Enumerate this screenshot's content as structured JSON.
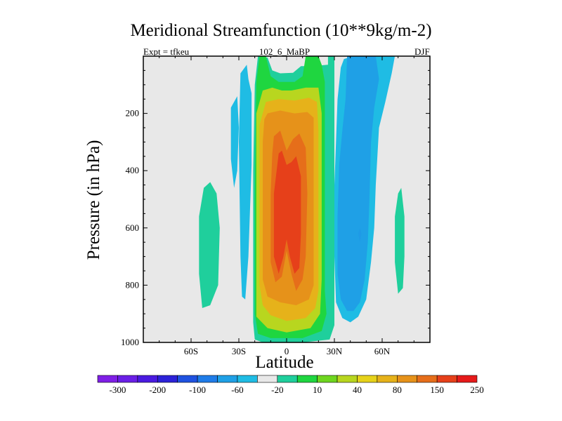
{
  "chart_data": {
    "type": "heatmap",
    "title": "Meridional Streamfunction (10**9kg/m-2)",
    "left_label": "Expt = tfkeu",
    "center_label": "102_6_MaBP",
    "right_label": "DJF",
    "xlabel": "Latitude",
    "ylabel": "Pressure (in hPa)",
    "xlim": [
      -90,
      90
    ],
    "ylim": [
      1000,
      0
    ],
    "y_inverted": true,
    "x_ticks": [
      {
        "value": -60,
        "label": "60S"
      },
      {
        "value": -30,
        "label": "30S"
      },
      {
        "value": 0,
        "label": "0"
      },
      {
        "value": 30,
        "label": "30N"
      },
      {
        "value": 60,
        "label": "60N"
      }
    ],
    "y_ticks": [
      {
        "value": 200,
        "label": "200"
      },
      {
        "value": 400,
        "label": "400"
      },
      {
        "value": 600,
        "label": "600"
      },
      {
        "value": 800,
        "label": "800"
      },
      {
        "value": 1000,
        "label": "1000"
      }
    ],
    "background_color": "#e8e8e8",
    "colorbar": {
      "colors": [
        "#7f1fe6",
        "#6a1fe6",
        "#4a1ae0",
        "#2c22d8",
        "#1f52e0",
        "#1f7ce8",
        "#1fa0e6",
        "#1fbce4",
        "#e8e8e8",
        "#1fcf9c",
        "#1fd640",
        "#6ed61f",
        "#b8d61f",
        "#e6d21a",
        "#e6b21a",
        "#e6921a",
        "#e66e1a",
        "#e6401a",
        "#e61a1a"
      ],
      "labels": [
        {
          "after_box": 1,
          "text": "-300"
        },
        {
          "after_box": 3,
          "text": "-200"
        },
        {
          "after_box": 5,
          "text": "-100"
        },
        {
          "after_box": 7,
          "text": "-60"
        },
        {
          "after_box": 9,
          "text": "-20"
        },
        {
          "after_box": 11,
          "text": "10"
        },
        {
          "after_box": 13,
          "text": "40"
        },
        {
          "after_box": 15,
          "text": "80"
        },
        {
          "after_box": 17,
          "text": "150"
        },
        {
          "after_box": 19,
          "text": "250"
        }
      ]
    },
    "contour_regions": [
      {
        "level": 10,
        "color": "#1fcf9c",
        "points": [
          [
            -48,
            440
          ],
          [
            -44,
            480
          ],
          [
            -42,
            600
          ],
          [
            -43,
            800
          ],
          [
            -48,
            870
          ],
          [
            -53,
            880
          ],
          [
            -55,
            760
          ],
          [
            -55,
            560
          ],
          [
            -52,
            460
          ]
        ]
      },
      {
        "level": 10,
        "color": "#1fcf9c",
        "points": [
          [
            72,
            460
          ],
          [
            74,
            560
          ],
          [
            74,
            700
          ],
          [
            73,
            810
          ],
          [
            70,
            830
          ],
          [
            68,
            720
          ],
          [
            68,
            560
          ],
          [
            70,
            480
          ]
        ]
      },
      {
        "level": 10,
        "color": "#1fcf9c",
        "points": [
          [
            -18,
            0
          ],
          [
            -12,
            5
          ],
          [
            -9,
            50
          ],
          [
            -4,
            60
          ],
          [
            4,
            58
          ],
          [
            9,
            35
          ],
          [
            16,
            35
          ],
          [
            26,
            30
          ],
          [
            26,
            0
          ],
          [
            30,
            0
          ],
          [
            30,
            940
          ],
          [
            27,
            990
          ],
          [
            10,
            1000
          ],
          [
            -15,
            1000
          ],
          [
            -20,
            990
          ],
          [
            -21,
            930
          ],
          [
            -21,
            400
          ],
          [
            -20,
            100
          ]
        ]
      },
      {
        "level": 40,
        "color": "#1fd640",
        "points": [
          [
            -17,
            0
          ],
          [
            -13,
            0
          ],
          [
            -10,
            70
          ],
          [
            -5,
            90
          ],
          [
            5,
            90
          ],
          [
            10,
            70
          ],
          [
            12,
            0
          ],
          [
            20,
            0
          ],
          [
            22,
            30
          ],
          [
            24,
            90
          ],
          [
            24,
            500
          ],
          [
            24,
            820
          ],
          [
            25,
            900
          ],
          [
            22,
            960
          ],
          [
            10,
            985
          ],
          [
            -10,
            985
          ],
          [
            -18,
            970
          ],
          [
            -20,
            900
          ],
          [
            -20,
            500
          ],
          [
            -19,
            90
          ]
        ]
      },
      {
        "level": 80,
        "color": "#b8d61f",
        "points": [
          [
            -15,
            120
          ],
          [
            -9,
            110
          ],
          [
            -3,
            120
          ],
          [
            3,
            120
          ],
          [
            12,
            110
          ],
          [
            20,
            110
          ],
          [
            22,
            200
          ],
          [
            22,
            780
          ],
          [
            21,
            900
          ],
          [
            15,
            950
          ],
          [
            0,
            965
          ],
          [
            -12,
            950
          ],
          [
            -19,
            910
          ],
          [
            -19,
            780
          ],
          [
            -19,
            200
          ]
        ]
      },
      {
        "level": 150,
        "color": "#e6b21a",
        "points": [
          [
            -13,
            160
          ],
          [
            -5,
            150
          ],
          [
            5,
            155
          ],
          [
            14,
            145
          ],
          [
            19,
            160
          ],
          [
            20,
            260
          ],
          [
            20,
            820
          ],
          [
            18,
            880
          ],
          [
            12,
            915
          ],
          [
            0,
            925
          ],
          [
            -10,
            905
          ],
          [
            -15,
            870
          ],
          [
            -17,
            800
          ],
          [
            -17,
            240
          ]
        ]
      },
      {
        "level": 200,
        "color": "#e6921a",
        "points": [
          [
            -12,
            200
          ],
          [
            -4,
            190
          ],
          [
            5,
            200
          ],
          [
            13,
            195
          ],
          [
            17,
            215
          ],
          [
            17,
            300
          ],
          [
            17,
            800
          ],
          [
            14,
            850
          ],
          [
            6,
            870
          ],
          [
            -4,
            860
          ],
          [
            -12,
            840
          ],
          [
            -15,
            780
          ],
          [
            -15,
            300
          ],
          [
            -14,
            220
          ]
        ]
      },
      {
        "level": 250,
        "color": "#e66e1a",
        "points": [
          [
            -8,
            280
          ],
          [
            -4,
            260
          ],
          [
            0,
            330
          ],
          [
            4,
            290
          ],
          [
            8,
            270
          ],
          [
            12,
            320
          ],
          [
            13,
            480
          ],
          [
            12,
            700
          ],
          [
            10,
            780
          ],
          [
            6,
            820
          ],
          [
            3,
            760
          ],
          [
            0,
            680
          ],
          [
            -3,
            770
          ],
          [
            -7,
            790
          ],
          [
            -10,
            720
          ],
          [
            -10,
            480
          ],
          [
            -9,
            340
          ]
        ]
      },
      {
        "level": 300,
        "color": "#e6401a",
        "points": [
          [
            -5,
            340
          ],
          [
            -3,
            330
          ],
          [
            0,
            380
          ],
          [
            3,
            370
          ],
          [
            6,
            350
          ],
          [
            9,
            420
          ],
          [
            9,
            620
          ],
          [
            8,
            740
          ],
          [
            5,
            760
          ],
          [
            2,
            700
          ],
          [
            0,
            640
          ],
          [
            -2,
            700
          ],
          [
            -5,
            760
          ],
          [
            -8,
            700
          ],
          [
            -8,
            480
          ]
        ]
      },
      {
        "level": -10,
        "color": "#1fbce4",
        "points": [
          [
            -29,
            60
          ],
          [
            -25,
            30
          ],
          [
            -24,
            80
          ],
          [
            -22,
            130
          ],
          [
            -22,
            380
          ],
          [
            -24,
            700
          ],
          [
            -26,
            850
          ],
          [
            -28,
            840
          ],
          [
            -29,
            700
          ],
          [
            -30,
            300
          ]
        ]
      },
      {
        "level": -10,
        "color": "#1fbce4",
        "points": [
          [
            -35,
            180
          ],
          [
            -31,
            140
          ],
          [
            -30,
            250
          ],
          [
            -31,
            400
          ],
          [
            -33,
            460
          ],
          [
            -35,
            360
          ]
        ]
      },
      {
        "level": -10,
        "color": "#1fbce4",
        "points": [
          [
            42,
            0
          ],
          [
            49,
            0
          ],
          [
            58,
            0
          ],
          [
            68,
            0
          ],
          [
            66,
            60
          ],
          [
            62,
            160
          ],
          [
            58,
            250
          ],
          [
            56,
            450
          ],
          [
            55,
            600
          ],
          [
            53,
            720
          ],
          [
            50,
            850
          ],
          [
            45,
            910
          ],
          [
            40,
            930
          ],
          [
            35,
            915
          ],
          [
            31,
            860
          ],
          [
            30,
            700
          ],
          [
            30,
            450
          ],
          [
            31,
            300
          ],
          [
            32,
            150
          ],
          [
            34,
            40
          ],
          [
            36,
            10
          ]
        ]
      },
      {
        "level": -20,
        "color": "#1fa0e6",
        "points": [
          [
            38,
            0
          ],
          [
            47,
            0
          ],
          [
            56,
            0
          ],
          [
            58,
            80
          ],
          [
            55,
            180
          ],
          [
            53,
            300
          ],
          [
            52,
            500
          ],
          [
            51,
            650
          ],
          [
            49,
            780
          ],
          [
            46,
            860
          ],
          [
            42,
            890
          ],
          [
            38,
            890
          ],
          [
            34,
            850
          ],
          [
            32,
            760
          ],
          [
            32,
            560
          ],
          [
            33,
            380
          ],
          [
            35,
            260
          ],
          [
            37,
            150
          ]
        ]
      },
      {
        "level": -30,
        "color": "#1f9ae6",
        "points": [
          [
            46,
            600
          ],
          [
            47,
            620
          ],
          [
            46,
            650
          ],
          [
            45,
            620
          ]
        ]
      }
    ]
  }
}
